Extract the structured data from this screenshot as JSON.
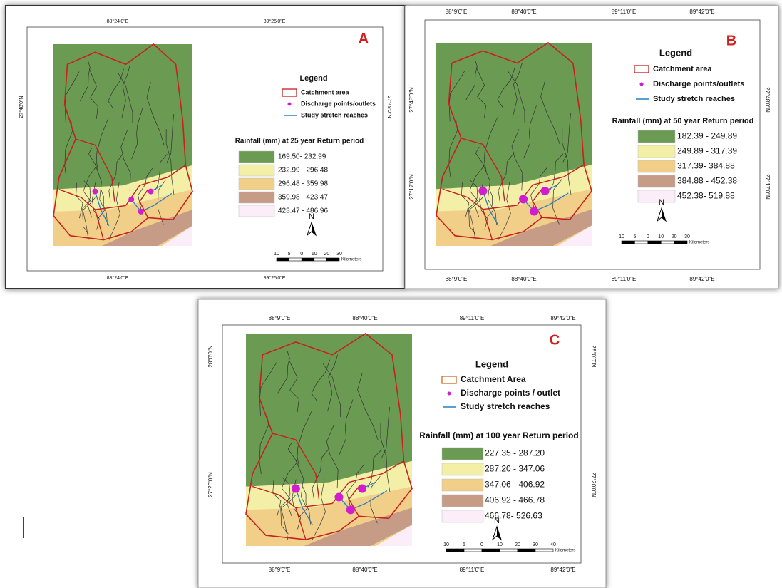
{
  "panels": [
    {
      "letter": "A",
      "top_coords": [
        "88°24'0\"E",
        "89°25'0\"E"
      ],
      "side_coords": [
        "27°48'0\"N"
      ],
      "legend": {
        "title": "Legend",
        "items": [
          "Catchment area",
          "Discharge points/outlets",
          "Study stretch reaches"
        ]
      },
      "rainfall_title": "Rainfall (mm) at 25 year Return period",
      "classes": [
        "169.50- 232.99",
        "232.99 - 296.48",
        "296.48 - 359.98",
        "359.98 - 423.47",
        "423.47 - 486.96"
      ],
      "north": "N",
      "scale_ticks": [
        "10",
        "5",
        "0",
        "10",
        "20",
        "30"
      ],
      "scale_unit": "Kilometers"
    },
    {
      "letter": "B",
      "top_coords": [
        "88°9'0\"E",
        "88°40'0\"E",
        "89°11'0\"E",
        "89°42'0\"E"
      ],
      "side_coords": [
        "27°48'0\"N",
        "27°17'0\"N"
      ],
      "legend": {
        "title": "Legend",
        "items": [
          "Catchment area",
          "Discharge points/outlets",
          "Study stretch reaches"
        ]
      },
      "rainfall_title": "Rainfall (mm) at 50 year Return period",
      "classes": [
        "182.39 - 249.89",
        "249.89 - 317.39",
        "317.39- 384.88",
        "384.88 - 452.38",
        "452.38- 519.88"
      ],
      "north": "N",
      "scale_ticks": [
        "10",
        "5",
        "0",
        "10",
        "20",
        "30"
      ],
      "scale_unit": "Kilometers"
    },
    {
      "letter": "C",
      "top_coords": [
        "88°9'0\"E",
        "88°40'0\"E",
        "89°11'0\"E",
        "89°42'0\"E"
      ],
      "side_coords": [
        "28°0'0\"N",
        "27°20'0\"N"
      ],
      "legend": {
        "title": "Legend",
        "items": [
          "Catchment Area",
          "Discharge points / outlet",
          "Study stretch reaches"
        ]
      },
      "rainfall_title": "Rainfall (mm) at 100 year Return period",
      "classes": [
        "227.35 - 287.20",
        "287.20 - 347.06",
        "347.06 - 406.92",
        "406.92 - 466.78",
        "466.78- 526.63"
      ],
      "north": "N",
      "scale_ticks": [
        "10",
        "5",
        "0",
        "10",
        "20",
        "30",
        "40"
      ],
      "scale_unit": "Kilometers"
    }
  ]
}
